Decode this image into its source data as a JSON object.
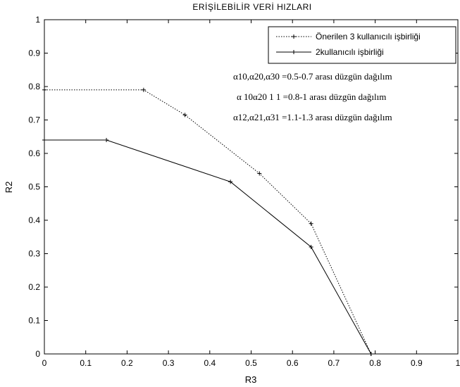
{
  "chart_data": {
    "type": "line",
    "title": "ERİŞİLEBİLİR VERİ HIZLARI",
    "xlabel": "R3",
    "ylabel": "R2",
    "xlim": [
      0,
      1
    ],
    "ylim": [
      0,
      1
    ],
    "xticks": [
      "0",
      "0.1",
      "0.2",
      "0.3",
      "0.4",
      "0.5",
      "0.6",
      "0.7",
      "0.8",
      "0.9",
      "1"
    ],
    "yticks": [
      "0",
      "0.1",
      "0.2",
      "0.3",
      "0.4",
      "0.5",
      "0.6",
      "0.7",
      "0.8",
      "0.9",
      "1"
    ],
    "grid": false,
    "legend": "top-right",
    "series": [
      {
        "name": "Önerilen 3 kullanıcılı işbirliği",
        "style": "dotted",
        "color": "#000000",
        "x": [
          0,
          0.24,
          0.34,
          0.52,
          0.645,
          0.79
        ],
        "y": [
          0.79,
          0.79,
          0.715,
          0.54,
          0.39,
          0
        ]
      },
      {
        "name": "2kullanıcılı işbirliği",
        "style": "solid",
        "color": "#000000",
        "x": [
          0,
          0.15,
          0.45,
          0.645,
          0.79
        ],
        "y": [
          0.64,
          0.64,
          0.515,
          0.32,
          0
        ]
      }
    ],
    "annotations": [
      "α10,α20,α30 =0.5-0.7 arası düzgün dağılım",
      "α 10α20 1 1 =0.8-1 arası düzgün dağılım",
      "α12,α21,α31 =1.1-1.3 arası düzgün dağılım"
    ]
  }
}
